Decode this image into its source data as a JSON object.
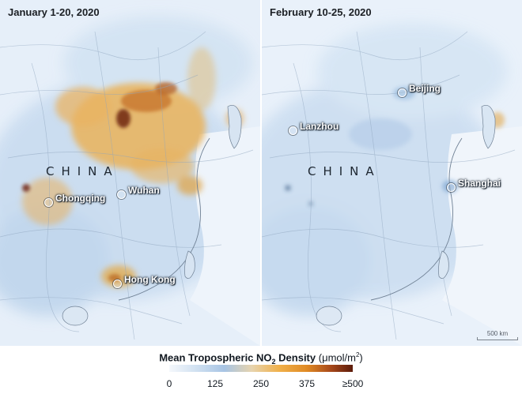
{
  "panels": [
    {
      "title": "January 1-20, 2020",
      "country_label": "CHINA",
      "cities": [
        "Chongqing",
        "Wuhan",
        "Hong Kong"
      ]
    },
    {
      "title": "February 10-25, 2020",
      "country_label": "CHINA",
      "cities": [
        "Lanzhou",
        "Beijing",
        "Shanghai"
      ]
    }
  ],
  "scale_bar": {
    "label": "500 km"
  },
  "legend": {
    "title_bold": "Mean Tropospheric NO",
    "title_subscript": "2",
    "title_rest": " Density",
    "unit_prefix": "(μmol/m",
    "unit_superscript": "2",
    "unit_suffix": ")",
    "ticks": [
      "0",
      "125",
      "250",
      "375",
      "≥500"
    ],
    "colors": [
      "#f5f8fc",
      "#a7c4e4",
      "#f0b04a",
      "#e08a24",
      "#5c1b0a"
    ]
  }
}
